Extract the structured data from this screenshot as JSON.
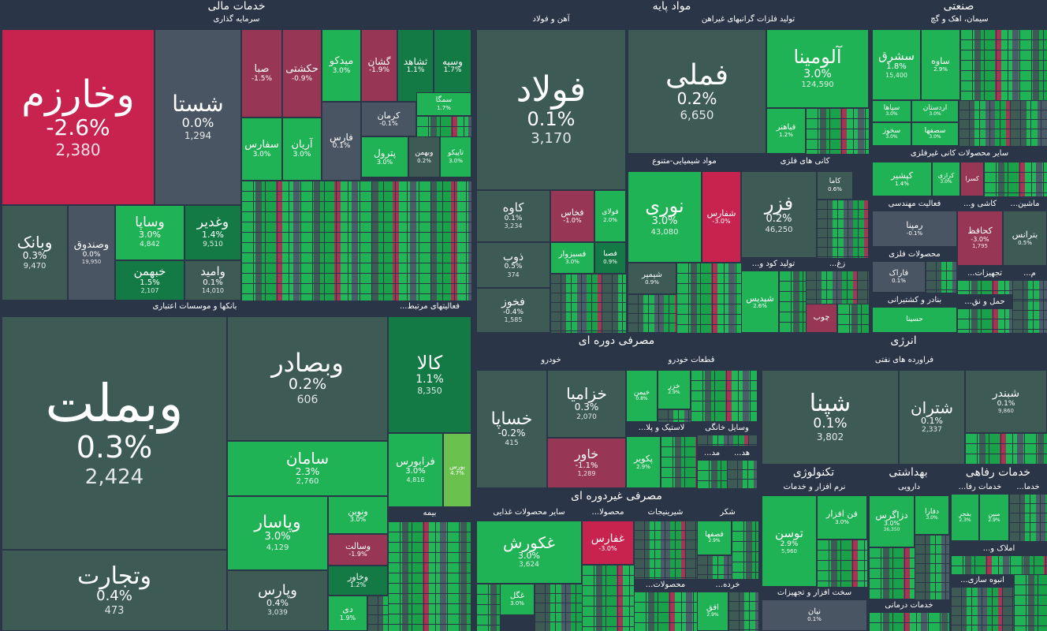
{
  "sections": {
    "financial": {
      "title": "خدمات مالی"
    },
    "base_materials": {
      "title": "مواد پایه"
    },
    "industrial": {
      "title": "صنعتی"
    },
    "cyclical": {
      "title": "مصرفی دوره ای"
    },
    "energy": {
      "title": "انرژی"
    },
    "noncyclical": {
      "title": "مصرفی غیردوره ای"
    },
    "technology": {
      "title": "تکنولوژی"
    },
    "health": {
      "title": "بهداشتی"
    },
    "welfare": {
      "title": "خدمات رفاهی"
    }
  },
  "subsectors": {
    "investment": "سرمایه گذاری",
    "banks": "بانکها و موسسات اعتباری",
    "related": "...فعالیتهای مرتبط",
    "insurance": "بیمه",
    "steel": "آهن و فولاد",
    "nonferrous": "تولید فلزات گرانبهای غیراهن",
    "chemicals": "مواد شیمیایی-متنوع",
    "metal_ores": "کانی های فلزی",
    "fertilizer": "...تولید کود و",
    "zinc": "...زغ",
    "cement": "سیمان، اهک و گچ",
    "other_nonmetal": "سایر محصولات کانی غیرفلزی",
    "engineering": "فعالیت مهندسی",
    "tiles": "...کاشی و",
    "machinery": "...ماشین",
    "metal_products": "محصولات فلزی",
    "equipment": "...تجهیزات",
    "ports": "بنادر و کشتیرانی",
    "transport": "...حمل و نق",
    "m": "...م",
    "auto": "خودرو",
    "auto_parts": "قطعات خودرو",
    "tires": "...لاستیک و پلا",
    "appliances": "وسایل خانگی",
    "md": "...مد",
    "hd": "...هد",
    "refinery": "فراورده های نفتی",
    "other_food": "سایر محصولات غذایی",
    "dairy": "...محصولا",
    "confection": "شیرینیجات",
    "sugar": "شکر",
    "products": "...محصولات",
    "kharde": "...خرده",
    "software": "نرم افزار و خدمات",
    "hardware": "سخت افزار و تجهیزات",
    "pharma": "دارویی",
    "medical": "خدمات درمانی",
    "welfare_services": "...خدمات رفا",
    "khadama": "...خدما",
    "real_estate": "...املاک و",
    "construction": "...انبوه سازی"
  },
  "tiles": {
    "vkharazm": {
      "name": "وخارزم",
      "pct": "-2.6%",
      "val": "2,380"
    },
    "shasta": {
      "name": "شستا",
      "pct": "0.0%",
      "val": "1,294"
    },
    "saba": {
      "name": "صبا",
      "pct": "-1.5%"
    },
    "hekashti": {
      "name": "حکشتی",
      "pct": "-0.9%"
    },
    "midko": {
      "name": "میدکو",
      "pct": "3.0%"
    },
    "goshan": {
      "name": "گشان",
      "pct": "-1.9%"
    },
    "tshahed": {
      "name": "ثشاهد",
      "pct": "1.1%"
    },
    "vsepah": {
      "name": "وسپه",
      "pct": "1.7%"
    },
    "kerman": {
      "name": "کرمان",
      "pct": "-0.1%"
    },
    "semga": {
      "name": "سمگا",
      "pct": "1.7%"
    },
    "safars": {
      "name": "سفارس",
      "pct": "3.0%"
    },
    "arian": {
      "name": "آریان",
      "pct": "3.0%"
    },
    "fars": {
      "name": "فارس",
      "pct": "0.1%"
    },
    "petrol": {
      "name": "پترول",
      "pct": "3.0%"
    },
    "vbahman": {
      "name": "وبهمن",
      "pct": "0.2%"
    },
    "tapiko": {
      "name": "تاپیکو",
      "pct": "3.0%"
    },
    "vbank": {
      "name": "وبانک",
      "pct": "0.3%",
      "val": "9,470"
    },
    "vsandooq": {
      "name": "وصندوق",
      "pct": "0.0%",
      "val": "19,950"
    },
    "vsapa": {
      "name": "وساپا",
      "pct": "3.0%",
      "val": "4,842"
    },
    "vghadir": {
      "name": "وغدیر",
      "pct": "1.4%",
      "val": "9,510"
    },
    "khbahman": {
      "name": "خبهمن",
      "pct": "1.5%",
      "val": "2,107"
    },
    "vamid": {
      "name": "وامید",
      "pct": "0.1%",
      "val": "14,010"
    },
    "vbamellat": {
      "name": "وبملت",
      "pct": "0.3%",
      "val": "2,424"
    },
    "vbsader": {
      "name": "وبصادر",
      "pct": "0.2%",
      "val": "606"
    },
    "saman": {
      "name": "سامان",
      "pct": "2.3%",
      "val": "2,760"
    },
    "vpasar": {
      "name": "وپاسار",
      "pct": "3.0%",
      "val": "4,129"
    },
    "vparis": {
      "name": "وپارس",
      "pct": "0.4%",
      "val": "3,039"
    },
    "vtejarat": {
      "name": "وتجارت",
      "pct": "0.4%",
      "val": "473"
    },
    "kala": {
      "name": "کالا",
      "pct": "1.1%",
      "val": "8,350"
    },
    "farabourse": {
      "name": "فرابورس",
      "pct": "3.0%",
      "val": "4,816"
    },
    "bourse": {
      "name": "بورس",
      "pct": "4.7%"
    },
    "vnovin": {
      "name": "ونوین",
      "pct": "3.0%"
    },
    "vsalat": {
      "name": "وسالت",
      "pct": "-1.9%"
    },
    "vkhavar": {
      "name": "وخاور",
      "pct": "1.2%"
    },
    "di": {
      "name": "دی",
      "pct": "1.9%"
    },
    "foolad": {
      "name": "فولاد",
      "pct": "0.1%",
      "val": "3,170"
    },
    "kaveh": {
      "name": "کاوه",
      "pct": "0.1%",
      "val": "3,234"
    },
    "zob": {
      "name": "ذوب",
      "pct": "0.5%",
      "val": "374"
    },
    "fkhooz": {
      "name": "فخوز",
      "pct": "-0.4%",
      "val": "1,585"
    },
    "fkhas": {
      "name": "فخاس",
      "pct": "-1.0%"
    },
    "fooladi": {
      "name": "فولای",
      "pct": "2.0%"
    },
    "fsabzevar": {
      "name": "فسبزوار",
      "pct": "3.0%"
    },
    "fsapa": {
      "name": "فصبا",
      "pct": "0.9%"
    },
    "femli": {
      "name": "فملی",
      "pct": "0.2%",
      "val": "6,650"
    },
    "aluminium": {
      "name": "آلومینا",
      "pct": "3.0%",
      "val": "124,590"
    },
    "fbahonar": {
      "name": "فباهنر",
      "pct": "1.2%"
    },
    "noori": {
      "name": "نوری",
      "pct": "3.0%",
      "val": "43,080"
    },
    "shefars": {
      "name": "شفارس",
      "pct": "-3.0%"
    },
    "shesapir": {
      "name": "شیمپر",
      "pct": "0.9%"
    },
    "fezer": {
      "name": "فزر",
      "pct": "0.2%",
      "val": "46,250"
    },
    "kama": {
      "name": "کاما",
      "pct": "0.6%"
    },
    "shpdis": {
      "name": "شپدیس",
      "pct": "2.6%"
    },
    "chop": {
      "name": "چوب"
    },
    "sshargh": {
      "name": "سشرق",
      "pct": "1.8%",
      "val": "15,400"
    },
    "saveh": {
      "name": "ساوه",
      "pct": "2.9%"
    },
    "sipaha": {
      "name": "سپاها",
      "pct": "3.0%"
    },
    "ardestan": {
      "name": "اردستان",
      "pct": "3.0%"
    },
    "skhuz": {
      "name": "سخوز",
      "pct": "3.0%"
    },
    "sasfeha": {
      "name": "سصفها",
      "pct": "3.0%"
    },
    "kpashir": {
      "name": "کپشیر",
      "pct": "1.4%"
    },
    "krazi": {
      "name": "کرازی",
      "pct": "3.0%"
    },
    "kasra": {
      "name": "کسرا"
    },
    "rampna": {
      "name": "رمپنا",
      "pct": "-0.1%"
    },
    "khafez": {
      "name": "کحافظ",
      "pct": "-3.0%",
      "val": "1,795"
    },
    "betrans": {
      "name": "بترانس",
      "pct": "0.5%"
    },
    "qarak": {
      "name": "فاراک",
      "pct": "0.1%"
    },
    "hasina": {
      "name": "حسینا"
    },
    "khasapa": {
      "name": "خساپا",
      "pct": "-0.2%",
      "val": "415"
    },
    "khazamia": {
      "name": "خزامیا",
      "pct": "0.3%",
      "val": "2,070"
    },
    "khavar": {
      "name": "خاور",
      "pct": "-1.1%",
      "val": "1,289"
    },
    "khemhen": {
      "name": "خیمن",
      "pct": "0.8%"
    },
    "khazar": {
      "name": "خزر",
      "pct": "2.9%"
    },
    "pakhbir": {
      "name": "پکویر",
      "pct": "2.9%"
    },
    "shepna": {
      "name": "شپنا",
      "pct": "0.1%",
      "val": "3,802"
    },
    "shtran": {
      "name": "شتران",
      "pct": "0.1%",
      "val": "2,337"
    },
    "shbandar": {
      "name": "شبندر",
      "pct": "0.1%",
      "val": "9,860"
    },
    "ghkoorosh": {
      "name": "غکورش",
      "pct": "3.0%",
      "val": "3,624"
    },
    "ghgol": {
      "name": "غگل",
      "pct": "3.0%"
    },
    "ghfars": {
      "name": "غفارس",
      "pct": "-3.0%"
    },
    "qfaqha": {
      "name": "قصفها",
      "pct": "2.9%"
    },
    "afagh": {
      "name": "افق",
      "pct": "2.9%"
    },
    "toosan": {
      "name": "توسن",
      "pct": "2.9%",
      "val": "5,960"
    },
    "fanafzar": {
      "name": "فن افزار",
      "pct": "3.0%"
    },
    "niyan": {
      "name": "نیان",
      "pct": "0.1%"
    },
    "dzagros": {
      "name": "دزاگرس",
      "pct": "3.0%",
      "val": "36,350"
    },
    "dfara": {
      "name": "دفارا",
      "pct": "3.0%"
    },
    "bafajr": {
      "name": "بفجر",
      "pct": "2.3%"
    },
    "mabin": {
      "name": "مبین",
      "pct": "2.9%"
    }
  }
}
